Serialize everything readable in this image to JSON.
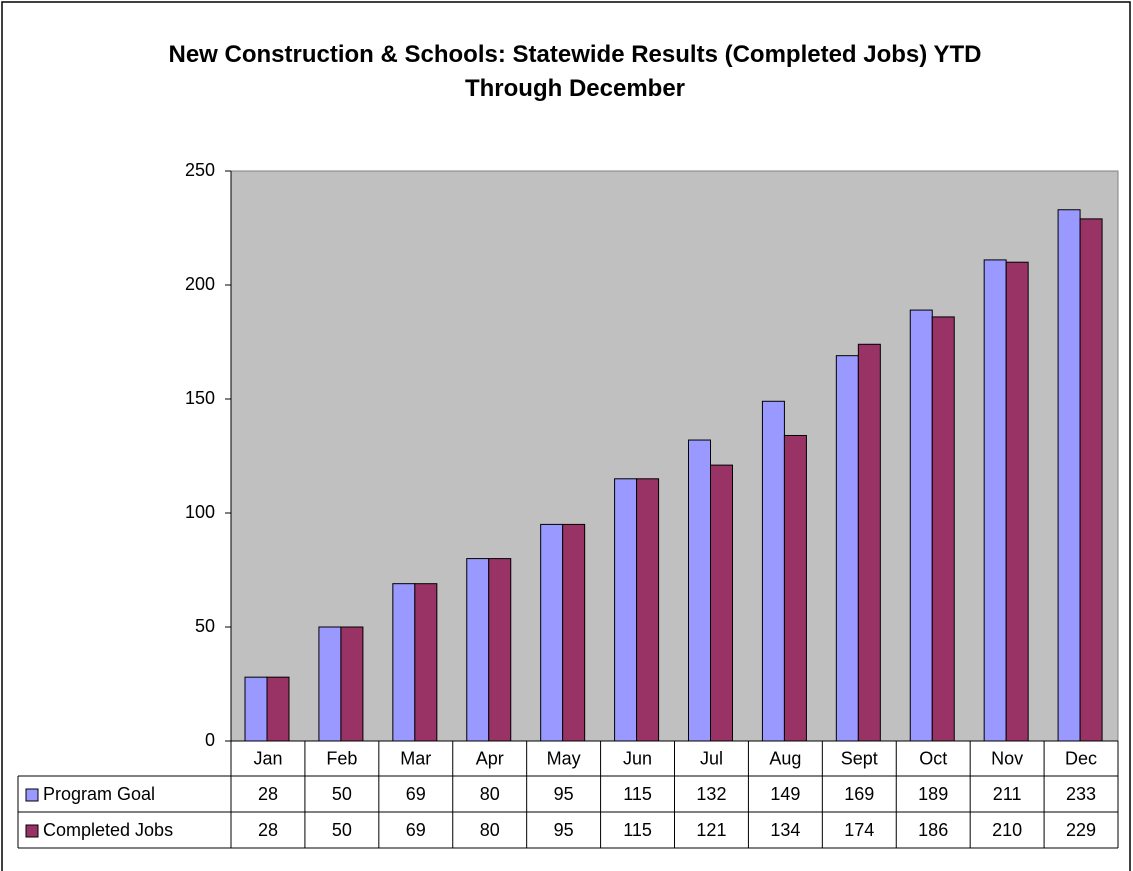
{
  "chart_data": {
    "type": "bar",
    "title": "New Construction & Schools: Statewide Results (Completed Jobs) YTD Through December",
    "categories": [
      "Jan",
      "Feb",
      "Mar",
      "Apr",
      "May",
      "Jun",
      "Jul",
      "Aug",
      "Sept",
      "Oct",
      "Nov",
      "Dec"
    ],
    "series": [
      {
        "name": "Program Goal",
        "color": "#9999ff",
        "values": [
          28,
          50,
          69,
          80,
          95,
          115,
          132,
          149,
          169,
          189,
          211,
          233
        ]
      },
      {
        "name": "Completed Jobs",
        "color": "#993366",
        "values": [
          28,
          50,
          69,
          80,
          95,
          115,
          121,
          134,
          174,
          186,
          210,
          229
        ]
      }
    ],
    "ylim": [
      0,
      250
    ],
    "yticks": [
      0,
      50,
      100,
      150,
      200,
      250
    ],
    "grid": false
  }
}
